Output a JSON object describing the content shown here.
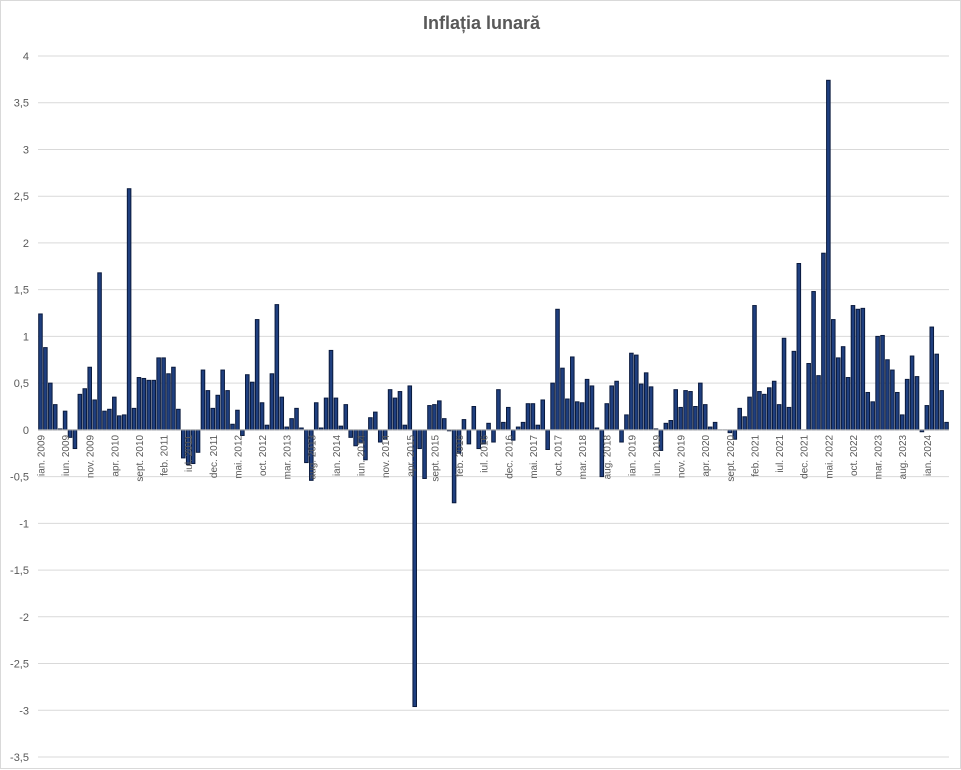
{
  "chart_data": {
    "type": "bar",
    "title": "Inflația lunară",
    "xlabel": "",
    "ylabel": "",
    "ylim": [
      -3.5,
      4
    ],
    "yticks": [
      4,
      3.5,
      3,
      2.5,
      2,
      1.5,
      1,
      0.5,
      0,
      -0.5,
      -1,
      -1.5,
      -2,
      -2.5,
      -3,
      -3.5
    ],
    "ytick_labels": [
      "4",
      "3,5",
      "3",
      "2,5",
      "2",
      "1,5",
      "1",
      "0,5",
      "0",
      "-0,5",
      "-1",
      "-1,5",
      "-2",
      "-2,5",
      "-3",
      "-3,5"
    ],
    "grid": true,
    "legend": "none",
    "bar_color": "#1f3f7f",
    "bar_edge_color": "#0a1a3d",
    "x_tick_labels": [
      {
        "index": 0,
        "label": "ian. 2009"
      },
      {
        "index": 5,
        "label": "iun. 2009"
      },
      {
        "index": 10,
        "label": "nov. 2009"
      },
      {
        "index": 15,
        "label": "apr. 2010"
      },
      {
        "index": 20,
        "label": "sept. 2010"
      },
      {
        "index": 25,
        "label": "feb. 2011"
      },
      {
        "index": 30,
        "label": "iul. 2011"
      },
      {
        "index": 35,
        "label": "dec. 2011"
      },
      {
        "index": 40,
        "label": "mai. 2012"
      },
      {
        "index": 45,
        "label": "oct. 2012"
      },
      {
        "index": 50,
        "label": "mar. 2013"
      },
      {
        "index": 55,
        "label": "aug. 2013"
      },
      {
        "index": 60,
        "label": "ian. 2014"
      },
      {
        "index": 65,
        "label": "iun. 2014"
      },
      {
        "index": 70,
        "label": "nov. 2014"
      },
      {
        "index": 75,
        "label": "apr. 2015"
      },
      {
        "index": 80,
        "label": "sept. 2015"
      },
      {
        "index": 85,
        "label": "feb. 2016"
      },
      {
        "index": 90,
        "label": "iul. 2016"
      },
      {
        "index": 95,
        "label": "dec. 2016"
      },
      {
        "index": 100,
        "label": "mai. 2017"
      },
      {
        "index": 105,
        "label": "oct. 2017"
      },
      {
        "index": 110,
        "label": "mar. 2018"
      },
      {
        "index": 115,
        "label": "aug. 2018"
      },
      {
        "index": 120,
        "label": "ian. 2019"
      },
      {
        "index": 125,
        "label": "iun. 2019"
      },
      {
        "index": 130,
        "label": "nov. 2019"
      },
      {
        "index": 135,
        "label": "apr. 2020"
      },
      {
        "index": 140,
        "label": "sept. 2020"
      },
      {
        "index": 145,
        "label": "feb. 2021"
      },
      {
        "index": 150,
        "label": "iul. 2021"
      },
      {
        "index": 155,
        "label": "dec. 2021"
      },
      {
        "index": 160,
        "label": "mai. 2022"
      },
      {
        "index": 165,
        "label": "oct. 2022"
      },
      {
        "index": 170,
        "label": "mar. 2023"
      },
      {
        "index": 175,
        "label": "aug. 2023"
      },
      {
        "index": 180,
        "label": "ian. 2024"
      }
    ],
    "values": [
      1.24,
      0.88,
      0.5,
      0.27,
      0.01,
      0.2,
      -0.08,
      -0.2,
      0.38,
      0.44,
      0.67,
      0.32,
      1.68,
      0.2,
      0.22,
      0.35,
      0.15,
      0.16,
      2.58,
      0.23,
      0.56,
      0.55,
      0.53,
      0.53,
      0.77,
      0.77,
      0.6,
      0.67,
      0.22,
      -0.3,
      -0.37,
      -0.36,
      -0.24,
      0.64,
      0.42,
      0.23,
      0.37,
      0.64,
      0.42,
      0.06,
      0.21,
      -0.06,
      0.59,
      0.51,
      1.18,
      0.29,
      0.05,
      0.6,
      1.34,
      0.35,
      0.03,
      0.12,
      0.23,
      0.02,
      -0.35,
      -0.54,
      0.29,
      0.02,
      0.34,
      0.85,
      0.34,
      0.04,
      0.27,
      -0.08,
      -0.17,
      -0.14,
      -0.32,
      0.13,
      0.19,
      -0.13,
      -0.1,
      0.43,
      0.34,
      0.41,
      0.05,
      0.47,
      -2.96,
      -0.2,
      -0.52,
      0.26,
      0.27,
      0.31,
      0.12,
      -0.01,
      -0.78,
      -0.25,
      0.11,
      -0.15,
      0.25,
      -0.2,
      -0.15,
      0.07,
      -0.13,
      0.43,
      0.08,
      0.24,
      -0.11,
      0.03,
      0.08,
      0.28,
      0.28,
      0.05,
      0.32,
      -0.21,
      0.5,
      1.29,
      0.66,
      0.33,
      0.78,
      0.3,
      0.29,
      0.54,
      0.47,
      0.02,
      -0.5,
      0.28,
      0.47,
      0.52,
      -0.13,
      0.16,
      0.82,
      0.8,
      0.49,
      0.61,
      0.46,
      0.01,
      -0.22,
      0.07,
      0.1,
      0.43,
      0.24,
      0.42,
      0.41,
      0.25,
      0.5,
      0.27,
      0.03,
      0.08,
      0.0,
      0.0,
      -0.03,
      -0.1,
      0.23,
      0.14,
      0.35,
      1.33,
      0.41,
      0.38,
      0.45,
      0.52,
      0.27,
      0.98,
      0.24,
      0.84,
      1.78,
      0.0,
      0.71,
      1.48,
      0.58,
      1.89,
      3.74,
      1.18,
      0.77,
      0.89,
      0.56,
      1.33,
      1.29,
      1.3,
      0.4,
      0.3,
      1.0,
      1.01,
      0.75,
      0.64,
      0.4,
      0.16,
      0.54,
      0.79,
      0.57,
      -0.02,
      0.26,
      1.1,
      0.81,
      0.42,
      0.08
    ]
  }
}
